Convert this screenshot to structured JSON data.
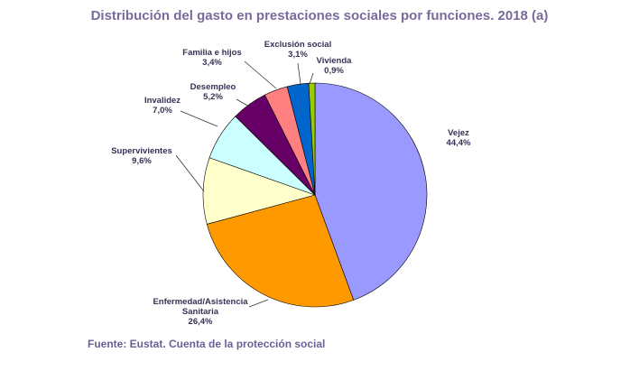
{
  "chart_data": {
    "type": "pie",
    "title": "Distribución del gasto en prestaciones sociales por funciones. 2018 (a)",
    "slices": [
      {
        "label": "Vejez",
        "value": 44.4,
        "value_text": "44,4%",
        "color": "#9999ff"
      },
      {
        "label": "Enfermedad/Asistencia Sanitaria",
        "label_lines": [
          "Enfermedad/Asistencia",
          "Sanitaria"
        ],
        "value": 26.4,
        "value_text": "26,4%",
        "color": "#ff9900"
      },
      {
        "label": "Supervivientes",
        "value": 9.6,
        "value_text": "9,6%",
        "color": "#ffffcc"
      },
      {
        "label": "Invalidez",
        "value": 7.0,
        "value_text": "7,0%",
        "color": "#ccffff"
      },
      {
        "label": "Desempleo",
        "value": 5.2,
        "value_text": "5,2%",
        "color": "#660066"
      },
      {
        "label": "Familia e hijos",
        "value": 3.4,
        "value_text": "3,4%",
        "color": "#ff8080"
      },
      {
        "label": "Exclusión social",
        "value": 3.1,
        "value_text": "3,1%",
        "color": "#0066cc"
      },
      {
        "label": "Vivienda",
        "value": 0.9,
        "value_text": "0,9%",
        "color": "#99cc00"
      }
    ],
    "start_angle": "12 o'clock",
    "direction": "clockwise"
  },
  "footer": {
    "source": "Fuente: Eustat. Cuenta de la protección social"
  }
}
